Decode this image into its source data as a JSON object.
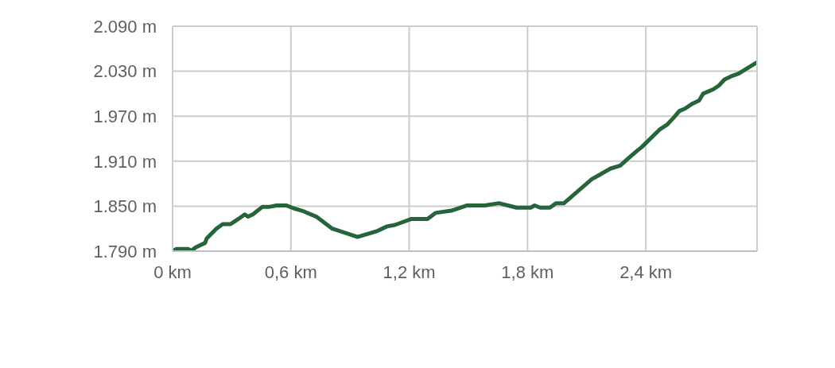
{
  "chart_data": {
    "type": "line",
    "x": [
      0,
      0.02,
      0.08,
      0.093,
      0.117,
      0.165,
      0.173,
      0.222,
      0.254,
      0.294,
      0.334,
      0.366,
      0.383,
      0.407,
      0.455,
      0.487,
      0.528,
      0.576,
      0.616,
      0.656,
      0.729,
      0.81,
      0.938,
      1.039,
      1.087,
      1.128,
      1.212,
      1.293,
      1.333,
      1.414,
      1.494,
      1.583,
      1.655,
      1.744,
      1.816,
      1.836,
      1.865,
      1.913,
      1.945,
      1.985,
      2.126,
      2.167,
      2.219,
      2.27,
      2.308,
      2.356,
      2.38,
      2.469,
      2.509,
      2.541,
      2.57,
      2.598,
      2.638,
      2.67,
      2.69,
      2.743,
      2.771,
      2.799,
      2.831,
      2.872,
      2.952,
      2.964
    ],
    "series": [
      {
        "color": "#26643a",
        "values": [
          1790,
          1793,
          1793,
          1790,
          1795,
          1801,
          1807,
          1820,
          1826,
          1826,
          1833,
          1839,
          1836,
          1839,
          1849,
          1849,
          1851,
          1851,
          1847,
          1844,
          1836,
          1820,
          1809,
          1817,
          1823,
          1825,
          1833,
          1833,
          1841,
          1844,
          1851,
          1851,
          1854,
          1848,
          1848,
          1851,
          1848,
          1848,
          1854,
          1854,
          1886,
          1892,
          1900,
          1904,
          1913,
          1924,
          1929,
          1952,
          1959,
          1968,
          1977,
          1980,
          1987,
          1991,
          2000,
          2006,
          2011,
          2019,
          2023,
          2027,
          2040,
          2042
        ]
      }
    ],
    "xlim": [
      0,
      2.964
    ],
    "xticks": [
      {
        "value": 0,
        "label": "0 km"
      },
      {
        "value": 0.6,
        "label": "0,6 km"
      },
      {
        "value": 1.2,
        "label": "1,2 km"
      },
      {
        "value": 1.8,
        "label": "1,8 km"
      },
      {
        "value": 2.4,
        "label": "2,4 km"
      }
    ],
    "ylim": [
      1790,
      2090
    ],
    "yticks": [
      {
        "value": 1790,
        "label": "1.790 m"
      },
      {
        "value": 1850,
        "label": "1.850 m"
      },
      {
        "value": 1910,
        "label": "1.910 m"
      },
      {
        "value": 1970,
        "label": "1.970 m"
      },
      {
        "value": 2030,
        "label": "2.030 m"
      },
      {
        "value": 2090,
        "label": "2.090 m"
      }
    ],
    "grid": true,
    "legend": false,
    "marker": "none",
    "line_style": "solid"
  }
}
